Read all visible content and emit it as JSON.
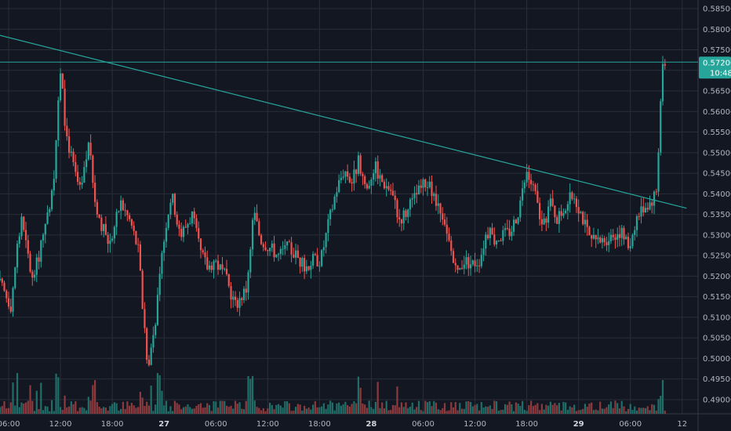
{
  "colors": {
    "background": "#131722",
    "grid": "#2a2e39",
    "up": "#26a69a",
    "down": "#ef5350",
    "up_volume": "#1f6e68",
    "down_volume": "#8c3a3d",
    "trendline": "#26a69a",
    "price_line": "#26a69a",
    "text": "#b2b5be"
  },
  "chart_data": {
    "type": "candlestick",
    "y_axis": {
      "position": "right",
      "ylim": [
        0.4885,
        0.5875
      ],
      "ticks": [
        "0.58500",
        "0.58000",
        "0.57500",
        "0.57000",
        "0.56500",
        "0.56000",
        "0.55500",
        "0.55000",
        "0.54500",
        "0.54000",
        "0.53500",
        "0.53000",
        "0.52500",
        "0.52000",
        "0.51500",
        "0.51000",
        "0.50500",
        "0.50000",
        "0.49500",
        "0.49000"
      ]
    },
    "x_axis": {
      "time_span_hours": [
        0,
        72.9
      ],
      "ticks": [
        {
          "label": "06:00",
          "hour": 1,
          "bold": false
        },
        {
          "label": "12:00",
          "hour": 7,
          "bold": false
        },
        {
          "label": "18:00",
          "hour": 13,
          "bold": false
        },
        {
          "label": "27",
          "hour": 19,
          "bold": true
        },
        {
          "label": "06:00",
          "hour": 25,
          "bold": false
        },
        {
          "label": "12:00",
          "hour": 31,
          "bold": false
        },
        {
          "label": "18:00",
          "hour": 37,
          "bold": false
        },
        {
          "label": "28",
          "hour": 43,
          "bold": true
        },
        {
          "label": "06:00",
          "hour": 49,
          "bold": false
        },
        {
          "label": "12:00",
          "hour": 55,
          "bold": false
        },
        {
          "label": "18:00",
          "hour": 61,
          "bold": false
        },
        {
          "label": "29",
          "hour": 67,
          "bold": true
        },
        {
          "label": "06:00",
          "hour": 73,
          "bold": false
        },
        {
          "label": "12",
          "hour": 79,
          "bold": false
        }
      ]
    },
    "grid": true,
    "trendline": {
      "start": {
        "hour": 0,
        "price": 0.5785
      },
      "end": {
        "hour": 79.5,
        "price": 0.5365
      }
    },
    "current_price": {
      "label": "0.57200",
      "value": 0.572,
      "countdown": "10:48"
    },
    "key_points": [
      {
        "hour": 0,
        "price": 0.519
      },
      {
        "hour": 1.5,
        "price": 0.513
      },
      {
        "hour": 2.7,
        "price": 0.534
      },
      {
        "hour": 4,
        "price": 0.519
      },
      {
        "hour": 5.5,
        "price": 0.531
      },
      {
        "hour": 6.5,
        "price": 0.545
      },
      {
        "hour": 7,
        "price": 0.562
      },
      {
        "hour": 7.3,
        "price": 0.57
      },
      {
        "hour": 7.8,
        "price": 0.556
      },
      {
        "hour": 8.8,
        "price": 0.546
      },
      {
        "hour": 9.6,
        "price": 0.54
      },
      {
        "hour": 10.5,
        "price": 0.552
      },
      {
        "hour": 11.3,
        "price": 0.538
      },
      {
        "hour": 12,
        "price": 0.532
      },
      {
        "hour": 13,
        "price": 0.528
      },
      {
        "hour": 14.2,
        "price": 0.538
      },
      {
        "hour": 15.4,
        "price": 0.533
      },
      {
        "hour": 16.3,
        "price": 0.526
      },
      {
        "hour": 17.1,
        "price": 0.503
      },
      {
        "hour": 17.4,
        "price": 0.497
      },
      {
        "hour": 18.4,
        "price": 0.512
      },
      {
        "hour": 19.4,
        "price": 0.532
      },
      {
        "hour": 20.1,
        "price": 0.54
      },
      {
        "hour": 21.2,
        "price": 0.53
      },
      {
        "hour": 22.5,
        "price": 0.535
      },
      {
        "hour": 23.4,
        "price": 0.526
      },
      {
        "hour": 24.3,
        "price": 0.522
      },
      {
        "hour": 25.1,
        "price": 0.524
      },
      {
        "hour": 26.3,
        "price": 0.52
      },
      {
        "hour": 27.5,
        "price": 0.513
      },
      {
        "hour": 28.8,
        "price": 0.517
      },
      {
        "hour": 29.6,
        "price": 0.536
      },
      {
        "hour": 30.4,
        "price": 0.529
      },
      {
        "hour": 31.5,
        "price": 0.527
      },
      {
        "hour": 32.5,
        "price": 0.525
      },
      {
        "hour": 33.6,
        "price": 0.527
      },
      {
        "hour": 34.6,
        "price": 0.525
      },
      {
        "hour": 35.5,
        "price": 0.522
      },
      {
        "hour": 36.5,
        "price": 0.524
      },
      {
        "hour": 37.4,
        "price": 0.524
      },
      {
        "hour": 38.3,
        "price": 0.533
      },
      {
        "hour": 39.2,
        "price": 0.541
      },
      {
        "hour": 40.1,
        "price": 0.546
      },
      {
        "hour": 41,
        "price": 0.543
      },
      {
        "hour": 41.8,
        "price": 0.548
      },
      {
        "hour": 42.7,
        "price": 0.541
      },
      {
        "hour": 43.6,
        "price": 0.547
      },
      {
        "hour": 44.5,
        "price": 0.543
      },
      {
        "hour": 45.5,
        "price": 0.541
      },
      {
        "hour": 46.5,
        "price": 0.534
      },
      {
        "hour": 47.5,
        "price": 0.536
      },
      {
        "hour": 48.5,
        "price": 0.54
      },
      {
        "hour": 49.6,
        "price": 0.543
      },
      {
        "hour": 50.5,
        "price": 0.539
      },
      {
        "hour": 51.5,
        "price": 0.533
      },
      {
        "hour": 52.4,
        "price": 0.527
      },
      {
        "hour": 53.1,
        "price": 0.52
      },
      {
        "hour": 54,
        "price": 0.524
      },
      {
        "hour": 54.9,
        "price": 0.523
      },
      {
        "hour": 55.8,
        "price": 0.524
      },
      {
        "hour": 56.6,
        "price": 0.531
      },
      {
        "hour": 57.5,
        "price": 0.529
      },
      {
        "hour": 58.4,
        "price": 0.53
      },
      {
        "hour": 59.4,
        "price": 0.531
      },
      {
        "hour": 60.3,
        "price": 0.536
      },
      {
        "hour": 61.2,
        "price": 0.545
      },
      {
        "hour": 62.1,
        "price": 0.541
      },
      {
        "hour": 63.1,
        "price": 0.531
      },
      {
        "hour": 63.9,
        "price": 0.538
      },
      {
        "hour": 64.8,
        "price": 0.534
      },
      {
        "hour": 65.7,
        "price": 0.537
      },
      {
        "hour": 66.7,
        "price": 0.54
      },
      {
        "hour": 67.6,
        "price": 0.535
      },
      {
        "hour": 68.5,
        "price": 0.529
      },
      {
        "hour": 69.4,
        "price": 0.528
      },
      {
        "hour": 70.3,
        "price": 0.529
      },
      {
        "hour": 71.2,
        "price": 0.53
      },
      {
        "hour": 72.1,
        "price": 0.531
      },
      {
        "hour": 73.1,
        "price": 0.527
      },
      {
        "hour": 73.9,
        "price": 0.534
      },
      {
        "hour": 74.8,
        "price": 0.537
      },
      {
        "hour": 75.6,
        "price": 0.538
      },
      {
        "hour": 76.3,
        "price": 0.541
      },
      {
        "hour": 76.8,
        "price": 0.566
      },
      {
        "hour": 77.1,
        "price": 0.572
      }
    ]
  }
}
